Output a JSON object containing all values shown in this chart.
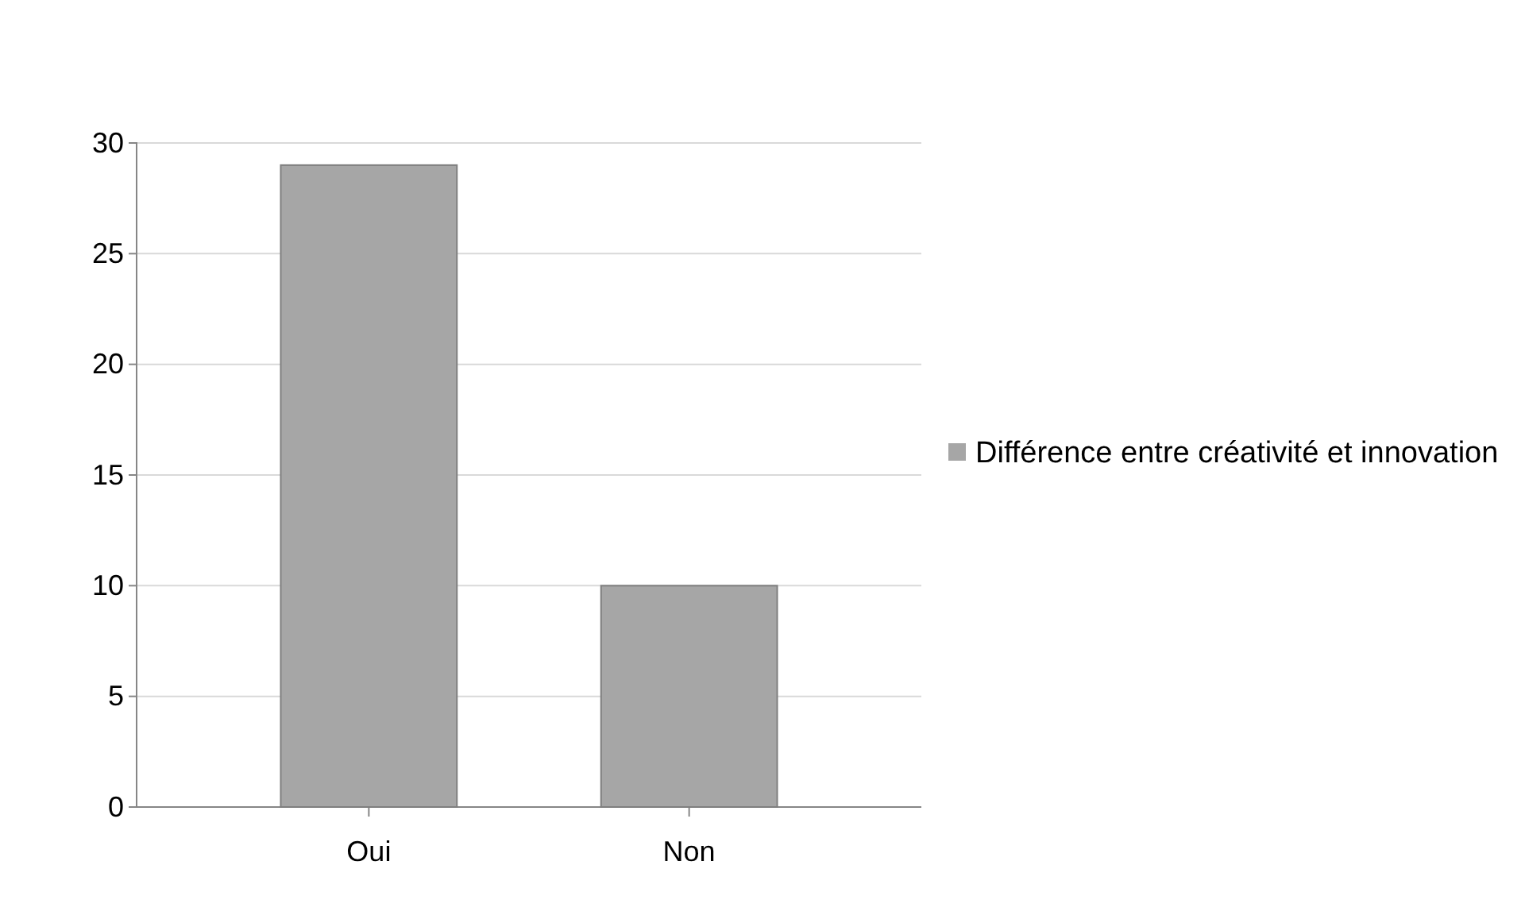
{
  "chart_data": {
    "type": "bar",
    "categories": [
      "Oui",
      "Non"
    ],
    "series": [
      {
        "name": "Différence entre créativité et innovation",
        "color": "#a6a6a6",
        "values": [
          29,
          10
        ]
      }
    ],
    "ylim": [
      0,
      30
    ],
    "yticks": [
      0,
      5,
      10,
      15,
      20,
      25,
      30
    ],
    "grid": "y",
    "legend": "right"
  }
}
